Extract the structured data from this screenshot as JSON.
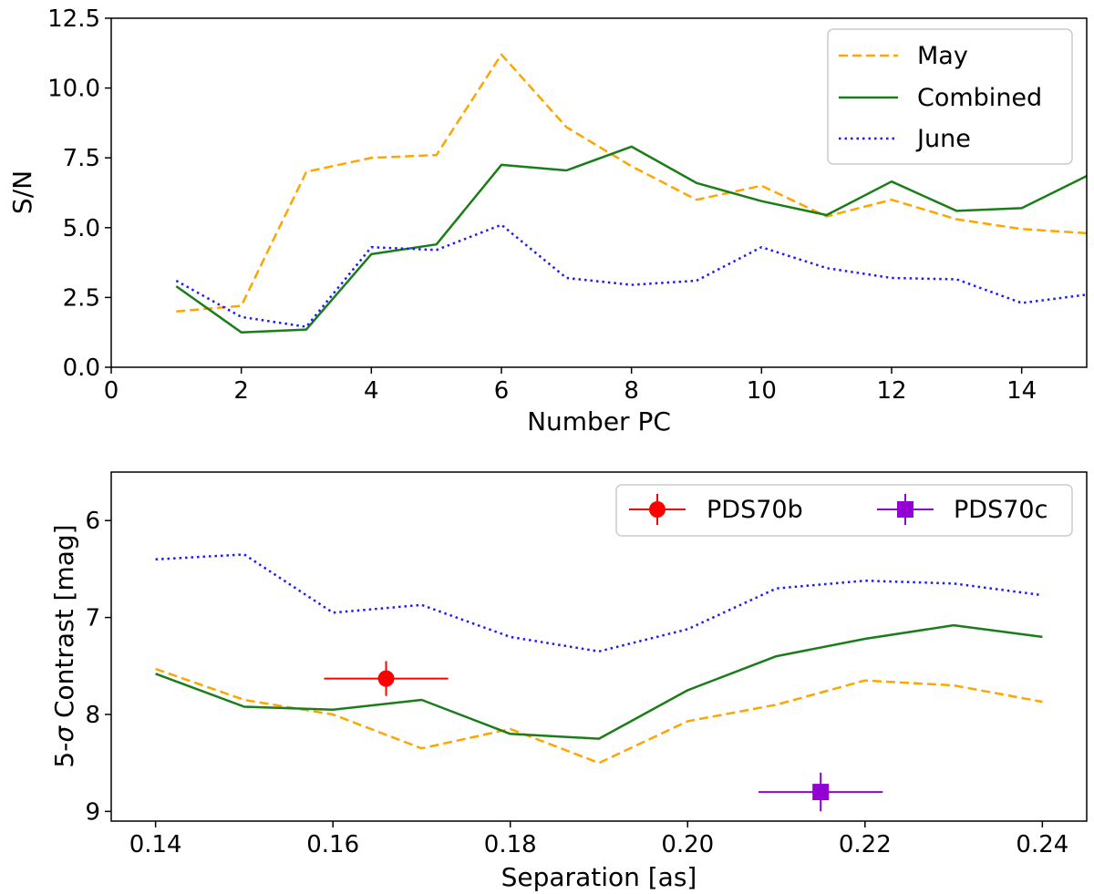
{
  "chart_data": [
    {
      "type": "line",
      "xlabel": "Number PC",
      "ylabel": "S/N",
      "xlim": [
        0,
        15
      ],
      "ylim": [
        0,
        12.5
      ],
      "xticks": [
        0,
        2,
        4,
        6,
        8,
        10,
        12,
        14
      ],
      "xtick_labels": [
        "0",
        "2",
        "4",
        "6",
        "8",
        "10",
        "12",
        "14"
      ],
      "yticks": [
        0,
        2.5,
        5,
        7.5,
        10,
        12.5
      ],
      "ytick_labels": [
        "0.0",
        "2.5",
        "5.0",
        "7.5",
        "10.0",
        "12.5"
      ],
      "grid": false,
      "legend_position": "top-right",
      "x": [
        1,
        2,
        3,
        4,
        5,
        6,
        7,
        8,
        9,
        10,
        11,
        12,
        13,
        14,
        15
      ],
      "series": [
        {
          "name": "May",
          "color": "#ffa500",
          "style": "dashed",
          "values": [
            2.0,
            2.2,
            7.0,
            7.5,
            7.6,
            11.2,
            8.6,
            7.2,
            6.0,
            6.5,
            5.4,
            6.0,
            5.3,
            4.95,
            4.8
          ]
        },
        {
          "name": "Combined",
          "color": "#1a7d1a",
          "style": "solid",
          "values": [
            2.9,
            1.25,
            1.35,
            4.05,
            4.4,
            7.25,
            7.05,
            7.9,
            6.6,
            5.95,
            5.45,
            6.65,
            5.6,
            5.7,
            6.85
          ]
        },
        {
          "name": "June",
          "color": "#1a1aff",
          "style": "dotted",
          "values": [
            3.1,
            1.8,
            1.45,
            4.3,
            4.2,
            5.1,
            3.2,
            2.95,
            3.1,
            4.3,
            3.55,
            3.2,
            3.15,
            2.3,
            2.6
          ]
        }
      ]
    },
    {
      "type": "line",
      "xlabel": "Separation [as]",
      "ylabel": "5-σ Contrast [mag]",
      "ylabel_prefix": "5-",
      "ylabel_symbol": "σ",
      "ylabel_suffix": " Contrast [mag]",
      "xlim": [
        0.135,
        0.245
      ],
      "ylim": [
        9.1,
        5.5
      ],
      "y_inverted": true,
      "xticks": [
        0.14,
        0.16,
        0.18,
        0.2,
        0.22,
        0.24
      ],
      "xtick_labels": [
        "0.14",
        "0.16",
        "0.18",
        "0.20",
        "0.22",
        "0.24"
      ],
      "yticks": [
        6,
        7,
        8,
        9
      ],
      "ytick_labels": [
        "6",
        "7",
        "8",
        "9"
      ],
      "grid": false,
      "legend_position": "top-right",
      "x": [
        0.14,
        0.15,
        0.16,
        0.17,
        0.18,
        0.19,
        0.2,
        0.21,
        0.22,
        0.23,
        0.24
      ],
      "series": [
        {
          "name": "May",
          "color": "#ffa500",
          "style": "dashed",
          "values": [
            7.53,
            7.85,
            8.0,
            8.35,
            8.15,
            8.5,
            8.07,
            7.9,
            7.65,
            7.7,
            7.87
          ]
        },
        {
          "name": "Combined",
          "color": "#1a7d1a",
          "style": "solid",
          "values": [
            7.58,
            7.92,
            7.95,
            7.85,
            8.2,
            8.25,
            7.75,
            7.4,
            7.22,
            7.08,
            7.2
          ]
        },
        {
          "name": "June",
          "color": "#1a1aff",
          "style": "dotted",
          "values": [
            6.4,
            6.35,
            6.95,
            6.87,
            7.2,
            7.35,
            7.12,
            6.7,
            6.62,
            6.65,
            6.77
          ]
        }
      ],
      "points": [
        {
          "name": "PDS70b",
          "marker": "circle",
          "color": "#ff0000",
          "x": 0.166,
          "y": 7.63,
          "xerr": 0.007,
          "yerr": 0.18
        },
        {
          "name": "PDS70c",
          "marker": "square",
          "color": "#9400d3",
          "x": 0.215,
          "y": 8.8,
          "xerr": 0.007,
          "yerr": 0.2
        }
      ]
    }
  ]
}
